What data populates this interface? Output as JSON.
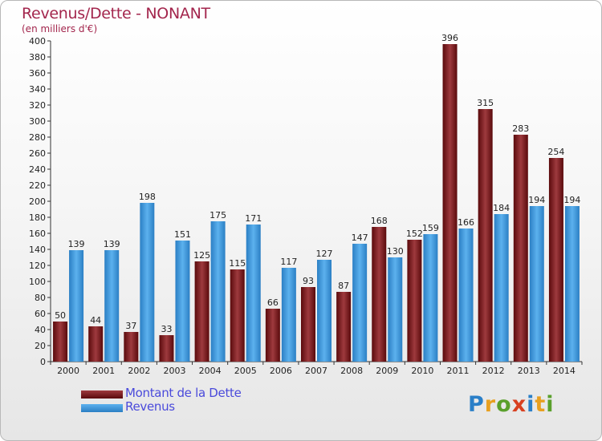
{
  "title": "Revenus/Dette - NONANT",
  "subtitle": "(en milliers d'€)",
  "logo": {
    "text": "Proxiti"
  },
  "colors": {
    "dette_dark": "#5a0a0c",
    "dette_light": "#9e3a3e",
    "revenus_dark": "#2b7fc4",
    "revenus_light": "#5cb1ee",
    "title": "#a3264d",
    "legend_text": "#4a4adb"
  },
  "chart_data": {
    "type": "bar",
    "title": "Revenus/Dette - NONANT",
    "subtitle": "(en milliers d'€)",
    "categories": [
      "2000",
      "2001",
      "2002",
      "2003",
      "2004",
      "2005",
      "2006",
      "2007",
      "2008",
      "2009",
      "2010",
      "2011",
      "2012",
      "2013",
      "2014"
    ],
    "series": [
      {
        "name": "Montant de la Dette",
        "values": [
          50,
          44,
          37,
          33,
          125,
          115,
          66,
          93,
          87,
          168,
          152,
          396,
          315,
          283,
          254
        ]
      },
      {
        "name": "Revenus",
        "values": [
          139,
          139,
          198,
          151,
          175,
          171,
          117,
          127,
          147,
          130,
          159,
          166,
          184,
          194,
          194
        ]
      }
    ],
    "ylim": [
      0,
      400
    ],
    "yticks": [
      0,
      20,
      40,
      60,
      80,
      100,
      120,
      140,
      160,
      180,
      200,
      220,
      240,
      260,
      280,
      300,
      320,
      340,
      360,
      380,
      400
    ],
    "grid": false,
    "legend_position": "bottom-left"
  }
}
